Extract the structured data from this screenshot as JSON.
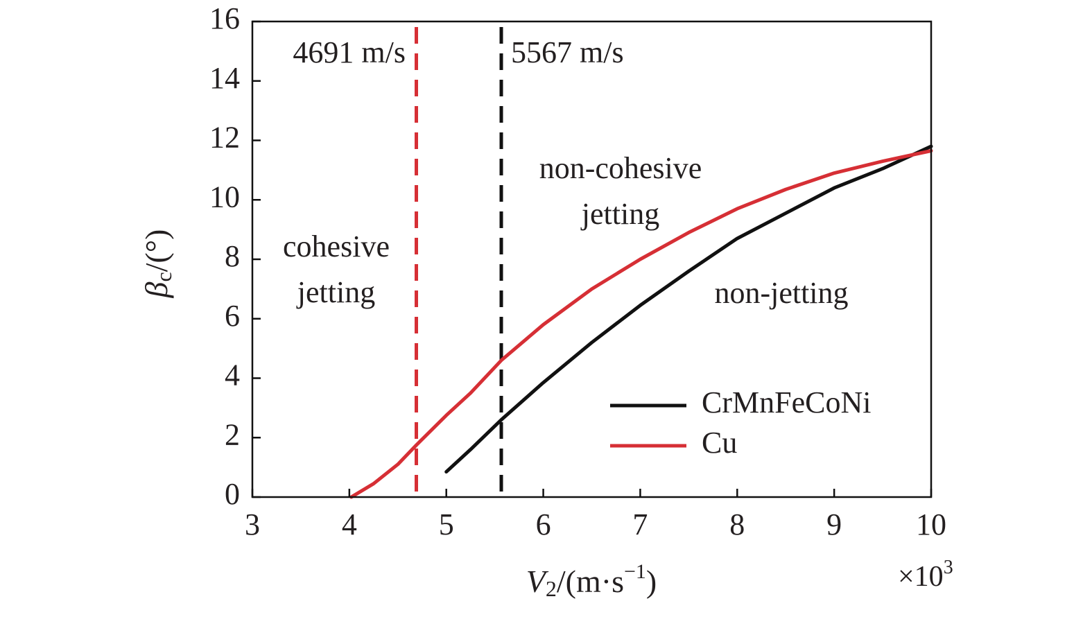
{
  "chart_data": {
    "type": "line",
    "y_label": {
      "symbol": "β",
      "subscript": "c",
      "unit": "/(°)"
    },
    "x_label": {
      "symbol": "V",
      "subscript": "2",
      "unit_start": "/(m·s",
      "unit_power": "−1",
      "unit_end": ")"
    },
    "x_multiplier": {
      "base": "×10",
      "power": "3"
    },
    "xlim": [
      3,
      10
    ],
    "xticks": [
      3,
      4,
      5,
      6,
      7,
      8,
      9,
      10
    ],
    "ylim": [
      0,
      16
    ],
    "yticks": [
      0,
      2,
      4,
      6,
      8,
      10,
      12,
      14,
      16
    ],
    "series": [
      {
        "name": "CrMnFeCoNi",
        "color": "#111111",
        "x": [
          5.0,
          5.25,
          5.567,
          6.0,
          6.5,
          7.0,
          7.5,
          8.0,
          8.5,
          9.0,
          9.5,
          10.0
        ],
        "values": [
          0.85,
          1.6,
          2.6,
          3.85,
          5.2,
          6.45,
          7.6,
          8.7,
          9.55,
          10.4,
          11.05,
          11.8
        ]
      },
      {
        "name": "Cu",
        "color": "#d62f35",
        "x": [
          4.02,
          4.25,
          4.5,
          4.691,
          5.0,
          5.25,
          5.567,
          6.0,
          6.5,
          7.0,
          7.5,
          8.0,
          8.5,
          9.0,
          9.5,
          10.0
        ],
        "values": [
          0,
          0.45,
          1.1,
          1.75,
          2.75,
          3.5,
          4.6,
          5.8,
          7.0,
          8.0,
          8.9,
          9.7,
          10.35,
          10.9,
          11.3,
          11.65
        ]
      }
    ],
    "vlines": [
      {
        "x": 4.691,
        "label": "4691 m/s",
        "color": "#d62f35"
      },
      {
        "x": 5.567,
        "label": "5567 m/s",
        "color": "#111111"
      }
    ],
    "annotations": [
      [
        "cohesive",
        "jetting"
      ],
      [
        "non-cohesive",
        "jetting"
      ],
      [
        "non-jetting"
      ]
    ]
  }
}
